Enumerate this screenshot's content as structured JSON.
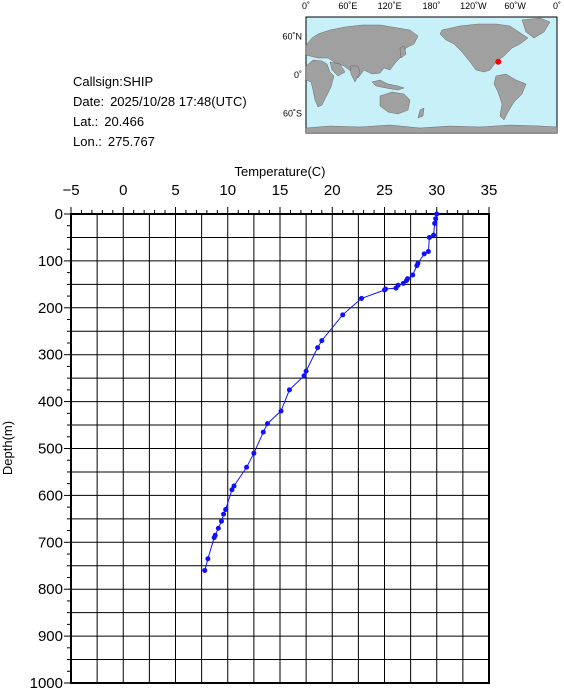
{
  "info": {
    "callsign_label": "Callsign:",
    "callsign": "SHIP",
    "date_label": "Date:",
    "date": "2025/10/28 17:48(UTC)",
    "lat_label": "Lat.:",
    "lat": "20.466",
    "lon_label": "Lon.:",
    "lon": "275.767"
  },
  "map": {
    "top_ticks": [
      "0˚",
      "60˚E",
      "120˚E",
      "180˚",
      "120˚W",
      "60˚W",
      "0˚"
    ],
    "lat_labels": [
      "60˚N",
      "0˚",
      "60˚S"
    ],
    "ocean_color": "#c8f0f8",
    "land_color": "#a0a0a0",
    "marker_color": "#ff0000",
    "marker": {
      "lon": 275.767,
      "lat": 20.466
    }
  },
  "chart_data": {
    "type": "line",
    "xlabel": "Temperature(C)",
    "ylabel": "Depth(m)",
    "xlim": [
      -5,
      35
    ],
    "ylim": [
      0,
      1000
    ],
    "y_inverted": true,
    "x_ticks": [
      -5,
      0,
      5,
      10,
      15,
      20,
      25,
      30,
      35
    ],
    "y_ticks": [
      0,
      100,
      200,
      300,
      400,
      500,
      600,
      700,
      800,
      900,
      1000
    ],
    "grid": true,
    "line_color": "#1010ff",
    "series": [
      {
        "x": [
          30.0,
          29.9,
          29.8,
          29.7,
          29.3,
          29.2,
          28.8,
          28.2,
          28.1,
          27.7,
          27.2,
          27.1,
          26.8,
          26.3,
          26.1,
          25.1,
          25.0,
          22.8,
          21.0,
          19.0,
          18.6,
          17.5,
          17.3,
          15.9,
          15.1,
          13.8,
          13.4,
          12.5,
          11.8,
          10.6,
          10.4,
          9.8,
          9.6,
          9.4,
          9.1,
          8.8,
          8.7,
          8.1,
          7.8
        ],
        "y": [
          0,
          10,
          20,
          45,
          50,
          80,
          85,
          105,
          110,
          130,
          138,
          142,
          148,
          152,
          158,
          160,
          162,
          180,
          215,
          270,
          285,
          335,
          345,
          375,
          420,
          447,
          465,
          510,
          540,
          580,
          588,
          630,
          640,
          655,
          670,
          685,
          690,
          735,
          760
        ]
      }
    ]
  }
}
